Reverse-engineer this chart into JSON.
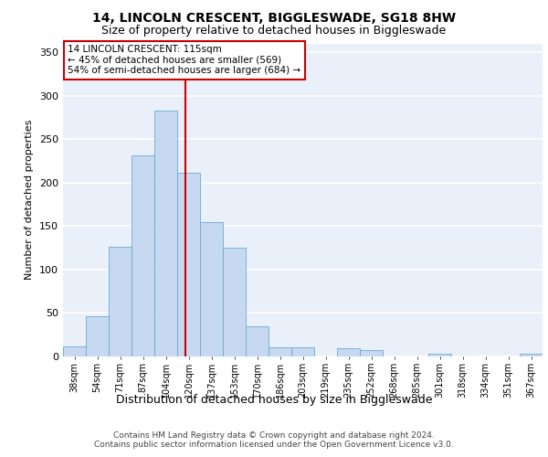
{
  "title1": "14, LINCOLN CRESCENT, BIGGLESWADE, SG18 8HW",
  "title2": "Size of property relative to detached houses in Biggleswade",
  "xlabel": "Distribution of detached houses by size in Biggleswade",
  "ylabel": "Number of detached properties",
  "bin_labels": [
    "38sqm",
    "54sqm",
    "71sqm",
    "87sqm",
    "104sqm",
    "120sqm",
    "137sqm",
    "153sqm",
    "170sqm",
    "186sqm",
    "203sqm",
    "219sqm",
    "235sqm",
    "252sqm",
    "268sqm",
    "285sqm",
    "301sqm",
    "318sqm",
    "334sqm",
    "351sqm",
    "367sqm"
  ],
  "bar_heights": [
    12,
    46,
    126,
    231,
    283,
    211,
    155,
    125,
    35,
    11,
    10,
    0,
    9,
    7,
    0,
    0,
    3,
    0,
    0,
    0,
    3
  ],
  "bar_color": "#c7d9f0",
  "bar_edge_color": "#6aaad4",
  "vline_color": "#cc0000",
  "annotation_line1": "14 LINCOLN CRESCENT: 115sqm",
  "annotation_line2": "← 45% of detached houses are smaller (569)",
  "annotation_line3": "54% of semi-detached houses are larger (684) →",
  "annotation_box_color": "#ffffff",
  "annotation_box_edge": "#cc0000",
  "footer1": "Contains HM Land Registry data © Crown copyright and database right 2024.",
  "footer2": "Contains public sector information licensed under the Open Government Licence v3.0.",
  "ylim": [
    0,
    360
  ],
  "yticks": [
    0,
    50,
    100,
    150,
    200,
    250,
    300,
    350
  ],
  "background_color": "#eaf0f9",
  "grid_color": "#ffffff"
}
